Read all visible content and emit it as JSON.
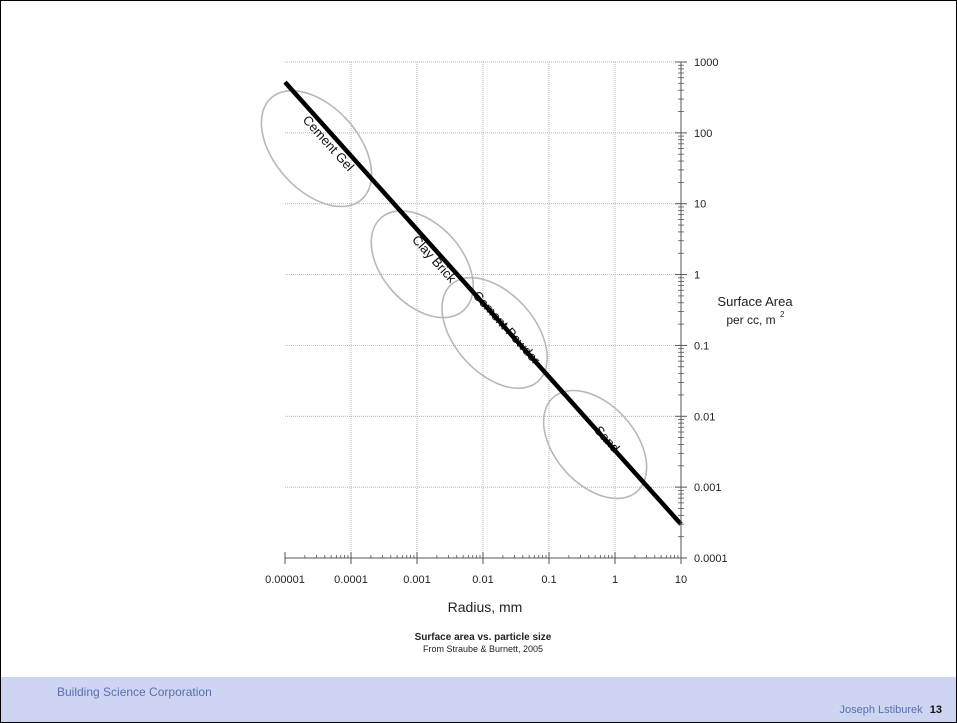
{
  "chart_data": {
    "type": "line",
    "x_scale": "log",
    "y_scale": "log",
    "xlim": [
      1e-05,
      10
    ],
    "ylim": [
      0.0001,
      1000
    ],
    "x_ticks": [
      1e-05,
      0.0001,
      0.001,
      0.01,
      0.1,
      1,
      10
    ],
    "x_tick_labels": [
      "0.00001",
      "0.0001",
      "0.001",
      "0.01",
      "0.1",
      "1",
      "10"
    ],
    "y_ticks": [
      0.0001,
      0.001,
      0.01,
      0.1,
      1,
      10,
      100,
      1000
    ],
    "y_tick_labels": [
      "0.0001",
      "0.001",
      "0.01",
      "0.1",
      "1",
      "10",
      "100",
      "1000"
    ],
    "grid": true,
    "xlabel": "Radius, mm",
    "ylabel_line1": "Surface Area",
    "ylabel_line2": "per cc, m",
    "ylabel_sup": "2",
    "title": "Surface area vs. particle size",
    "subtitle": "From Straube & Burnett, 2005",
    "series": [
      {
        "x": [
          1e-05,
          10
        ],
        "y": [
          520,
          0.0003
        ]
      }
    ],
    "regions": [
      {
        "label": "Cement Gel",
        "x": 3e-05,
        "y": 60
      },
      {
        "label": "Clay Brick",
        "x": 0.0012,
        "y": 1.4
      },
      {
        "label": "Cement Powder",
        "x": 0.015,
        "y": 0.15
      },
      {
        "label": "Sand",
        "x": 0.5,
        "y": 0.004
      }
    ]
  },
  "footer": {
    "left": "Building Science Corporation",
    "author": "Joseph Lstiburek",
    "page": "13"
  }
}
